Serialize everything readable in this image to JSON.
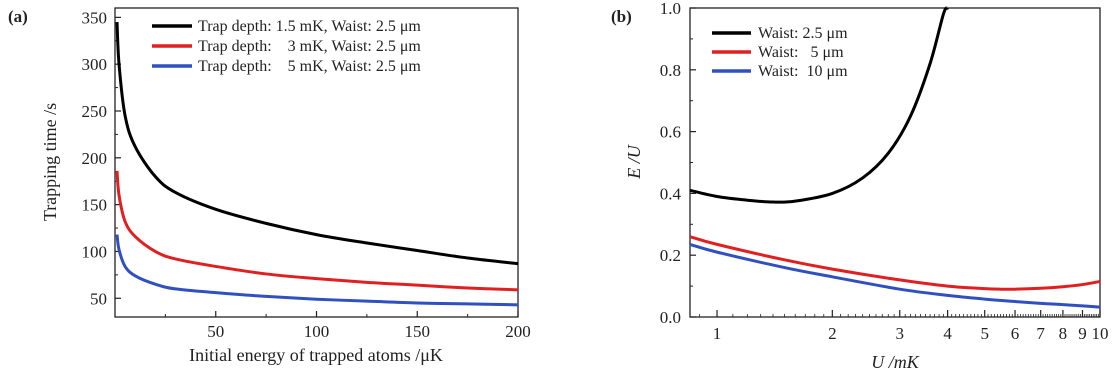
{
  "chart_data": [
    {
      "panel_label": "(a)",
      "type": "line",
      "xlabel": "Initial energy of trapped atoms /μK",
      "ylabel": "Trapping time /s",
      "xlim": [
        0,
        200
      ],
      "ylim": [
        30,
        360
      ],
      "xticks": [
        50,
        100,
        150,
        200
      ],
      "yticks": [
        50,
        100,
        150,
        200,
        250,
        300,
        350
      ],
      "legend_position": "top",
      "series": [
        {
          "name": "Trap depth: 1.5 mK, Waist: 2.5 μm",
          "color": "#000000",
          "x": [
            1,
            2,
            5,
            10,
            20,
            30,
            50,
            75,
            100,
            125,
            150,
            175,
            200
          ],
          "y": [
            345,
            300,
            245,
            212,
            180,
            163,
            145,
            130,
            118,
            109,
            101,
            93,
            87
          ]
        },
        {
          "name": "Trap depth:    3 mK, Waist: 2.5 μm",
          "color": "#e02020",
          "x": [
            1,
            2,
            5,
            10,
            20,
            30,
            50,
            75,
            100,
            125,
            150,
            175,
            200
          ],
          "y": [
            186,
            160,
            132,
            116,
            100,
            92,
            84,
            76,
            71,
            67,
            64,
            61,
            59
          ]
        },
        {
          "name": "Trap depth:    5 mK, Waist: 2.5 μm",
          "color": "#3050c0",
          "x": [
            1,
            2,
            5,
            10,
            20,
            30,
            50,
            75,
            100,
            125,
            150,
            175,
            200
          ],
          "y": [
            118,
            102,
            84,
            74,
            65,
            60,
            56,
            52,
            49,
            47,
            45,
            44,
            43
          ]
        }
      ]
    },
    {
      "panel_label": "(b)",
      "type": "line",
      "xlabel": "U /mK",
      "ylabel": "E /U",
      "xscale": "log",
      "xlim": [
        0.85,
        10
      ],
      "ylim": [
        0,
        1.0
      ],
      "xticks": [
        1,
        2,
        3,
        4,
        5,
        6,
        7,
        8,
        9,
        10
      ],
      "xtick_labels": [
        "1",
        "2",
        "3",
        "4",
        "5",
        "6",
        "7",
        "8",
        "9",
        "10"
      ],
      "yticks": [
        0.0,
        0.2,
        0.4,
        0.6,
        0.8,
        1.0
      ],
      "ytick_labels": [
        "0.0",
        "0.2",
        "0.4",
        "0.6",
        "0.8",
        "1.0"
      ],
      "legend_position": "top-left",
      "series": [
        {
          "name": "Waist: 2.5 μm",
          "color": "#000000",
          "x": [
            0.85,
            1.0,
            1.2,
            1.4,
            1.6,
            2.0,
            2.4,
            2.8,
            3.2,
            3.6,
            3.9,
            4.0
          ],
          "y": [
            0.41,
            0.39,
            0.378,
            0.372,
            0.375,
            0.4,
            0.45,
            0.53,
            0.65,
            0.82,
            0.98,
            1.0
          ]
        },
        {
          "name": "Waist:   5 μm",
          "color": "#e02020",
          "x": [
            0.85,
            1.0,
            1.5,
            2.0,
            3.0,
            4.0,
            5.0,
            5.5,
            6.0,
            7.0,
            8.0,
            9.0,
            10.0
          ],
          "y": [
            0.26,
            0.235,
            0.185,
            0.155,
            0.12,
            0.1,
            0.092,
            0.09,
            0.09,
            0.093,
            0.098,
            0.105,
            0.115
          ]
        },
        {
          "name": "Waist:  10 μm",
          "color": "#3050c0",
          "x": [
            0.85,
            1.0,
            1.5,
            2.0,
            3.0,
            4.0,
            5.0,
            6.0,
            7.0,
            8.0,
            9.0,
            10.0
          ],
          "y": [
            0.235,
            0.21,
            0.16,
            0.13,
            0.09,
            0.07,
            0.058,
            0.05,
            0.044,
            0.04,
            0.036,
            0.032
          ]
        }
      ]
    }
  ]
}
